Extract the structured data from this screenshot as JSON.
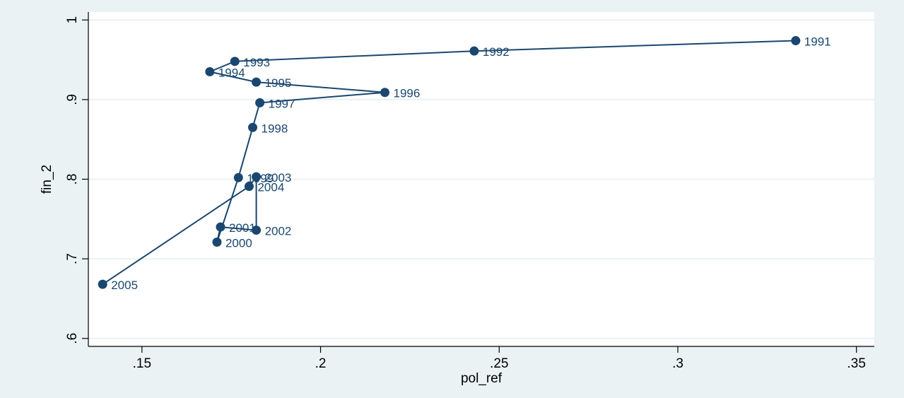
{
  "colors": {
    "background": "#eaf2f3",
    "plot_background": "#ffffff",
    "series": "#1a476f",
    "grid": "#eaf2f3",
    "axis": "#000000"
  },
  "chart_data": {
    "type": "line",
    "xlabel": "pol_ref",
    "ylabel": "fin_2",
    "xlim": [
      0.135,
      0.355
    ],
    "ylim": [
      0.59,
      1.01
    ],
    "x_ticks": [
      0.15,
      0.2,
      0.25,
      0.3,
      0.35
    ],
    "x_tick_labels": [
      ".15",
      ".2",
      ".25",
      ".3",
      ".35"
    ],
    "y_ticks": [
      0.6,
      0.7,
      0.8,
      0.9,
      1.0
    ],
    "y_tick_labels": [
      ".6",
      ".7",
      ".8",
      ".9",
      "1"
    ],
    "grid": true,
    "markers": true,
    "series": [
      {
        "points": [
          {
            "label": "1991",
            "x": 0.333,
            "y": 0.974
          },
          {
            "label": "1992",
            "x": 0.243,
            "y": 0.961
          },
          {
            "label": "1993",
            "x": 0.176,
            "y": 0.948
          },
          {
            "label": "1994",
            "x": 0.169,
            "y": 0.935
          },
          {
            "label": "1995",
            "x": 0.182,
            "y": 0.922
          },
          {
            "label": "1996",
            "x": 0.218,
            "y": 0.909
          },
          {
            "label": "1997",
            "x": 0.183,
            "y": 0.896
          },
          {
            "label": "1998",
            "x": 0.181,
            "y": 0.865
          },
          {
            "label": "1999",
            "x": 0.177,
            "y": 0.802
          },
          {
            "label": "2000",
            "x": 0.171,
            "y": 0.721
          },
          {
            "label": "2001",
            "x": 0.172,
            "y": 0.74
          },
          {
            "label": "2002",
            "x": 0.182,
            "y": 0.736
          },
          {
            "label": "2003",
            "x": 0.182,
            "y": 0.803
          },
          {
            "label": "2004",
            "x": 0.18,
            "y": 0.791
          },
          {
            "label": "2005",
            "x": 0.139,
            "y": 0.668
          }
        ]
      }
    ]
  }
}
